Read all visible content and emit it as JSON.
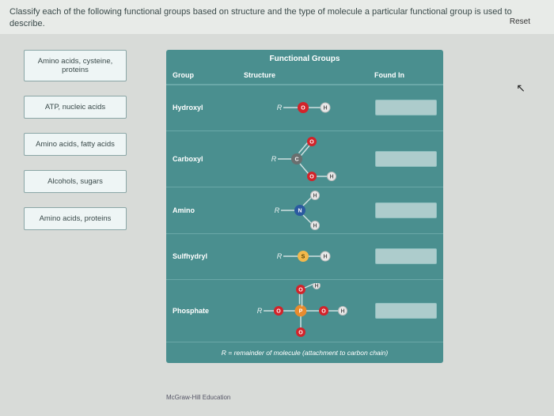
{
  "instruction": "Classify each of the following functional groups based on structure and the type of molecule a particular functional group is used to describe.",
  "drag_items": [
    "Amino acids, cysteine, proteins",
    "ATP, nucleic acids",
    "Amino acids, fatty acids",
    "Alcohols, sugars",
    "Amino acids, proteins"
  ],
  "table": {
    "title": "Functional Groups",
    "headers": {
      "group": "Group",
      "structure": "Structure",
      "found_in": "Found In"
    },
    "rows": [
      {
        "group": "Hydroxyl",
        "structure": "hydroxyl"
      },
      {
        "group": "Carboxyl",
        "structure": "carboxyl"
      },
      {
        "group": "Amino",
        "structure": "amino"
      },
      {
        "group": "Sulfhydryl",
        "structure": "sulfhydryl"
      },
      {
        "group": "Phosphate",
        "structure": "phosphate"
      }
    ],
    "footer": "R = remainder of molecule (attachment to carbon chain)"
  },
  "credit": "McGraw-Hill Education",
  "reset_label": "Reset",
  "style": {
    "panel_bg": "#4a8f8f",
    "atom_O": "#d2232a",
    "atom_S": "#f2b84b",
    "atom_C": "#6a6f6f",
    "atom_N": "#2b5aa0",
    "atom_P": "#e88b2e",
    "atom_H": "#e9e9e9",
    "atom_H_stroke": "#bcbcbc",
    "bond": "#cfe0e0",
    "label": "#eaf2f2"
  }
}
